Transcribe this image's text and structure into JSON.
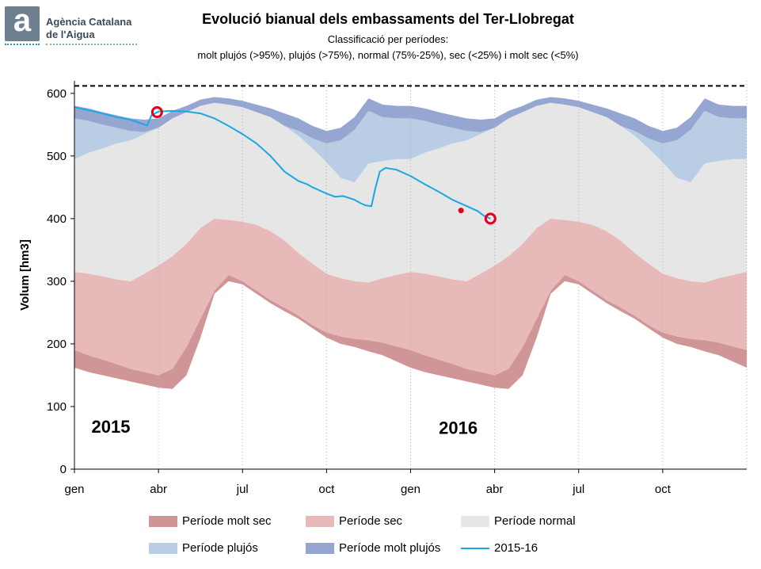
{
  "header": {
    "logo_letter": "a",
    "org_line1": "Agència Catalana",
    "org_line2": "de l'Aigua",
    "title": "Evolució bianual dels embassaments del Ter-Llobregat",
    "subtitle1": "Classificació per períodes:",
    "subtitle2": "molt plujós (>95%), plujós (>75%), normal (75%-25%), sec (<25%) i molt sec (<5%)"
  },
  "chart_data": {
    "type": "area",
    "ylabel": "Volum [hm3]",
    "ylim": [
      0,
      620
    ],
    "yticks": [
      0,
      100,
      200,
      300,
      400,
      500,
      600
    ],
    "xlim": [
      0,
      24
    ],
    "xtick_positions": [
      0,
      3,
      6,
      9,
      12,
      15,
      18,
      21
    ],
    "xtick_labels": [
      "gen",
      "abr",
      "jul",
      "oct",
      "gen",
      "abr",
      "jul",
      "oct"
    ],
    "capacity_line": 612,
    "year_labels": [
      {
        "text": "2015",
        "x": 1.3,
        "y": 58
      },
      {
        "text": "2016",
        "x": 13.7,
        "y": 56
      }
    ],
    "grid": true,
    "legend_position": "bottom",
    "bands_x": [
      0,
      0.5,
      1,
      1.5,
      2,
      2.5,
      3,
      3.5,
      4,
      4.5,
      5,
      5.5,
      6,
      6.5,
      7,
      7.5,
      8,
      8.5,
      9,
      9.5,
      10,
      10.5,
      11,
      11.5,
      12
    ],
    "bands_yearly": {
      "p5": [
        162,
        155,
        150,
        145,
        140,
        135,
        130,
        128,
        150,
        210,
        280,
        300,
        295,
        280,
        265,
        252,
        240,
        225,
        210,
        200,
        195,
        188,
        182,
        172,
        162
      ],
      "p25": [
        190,
        182,
        175,
        168,
        160,
        155,
        150,
        160,
        195,
        240,
        285,
        310,
        300,
        285,
        270,
        258,
        245,
        230,
        218,
        212,
        208,
        206,
        202,
        196,
        190
      ],
      "p75": [
        315,
        312,
        308,
        303,
        300,
        312,
        325,
        340,
        360,
        385,
        400,
        398,
        395,
        390,
        380,
        365,
        345,
        328,
        312,
        305,
        300,
        298,
        305,
        310,
        315
      ],
      "p95": [
        495,
        505,
        512,
        520,
        525,
        535,
        545,
        560,
        570,
        580,
        585,
        582,
        578,
        570,
        562,
        548,
        532,
        512,
        490,
        465,
        458,
        488,
        492,
        495,
        495
      ],
      "max": [
        580,
        576,
        570,
        565,
        560,
        558,
        560,
        572,
        580,
        590,
        594,
        592,
        588,
        582,
        576,
        568,
        560,
        548,
        540,
        545,
        562,
        592,
        582,
        580,
        580
      ]
    },
    "bands_legend": [
      {
        "name": "Període molt sec",
        "color": "#d09596"
      },
      {
        "name": "Període sec",
        "color": "#e8b9b9"
      },
      {
        "name": "Període normal",
        "color": "#e6e6e6"
      },
      {
        "name": "Període plujós",
        "color": "#b9cde5"
      },
      {
        "name": "Període molt plujós",
        "color": "#95a6d1"
      }
    ],
    "series": [
      {
        "name": "2015-16",
        "color": "#1aa7e2",
        "x": [
          0,
          0.5,
          1,
          1.5,
          2,
          2.5,
          2.6,
          2.75,
          3,
          3.5,
          4,
          4.5,
          5,
          5.5,
          6,
          6.5,
          7,
          7.5,
          8,
          8.3,
          8.5,
          8.7,
          9,
          9.3,
          9.6,
          10,
          10.2,
          10.4,
          10.6,
          10.75,
          10.9,
          11.1,
          11.5,
          12,
          12.5,
          13,
          13.5,
          14,
          14.4,
          14.6,
          14.85
        ],
        "values": [
          578,
          573,
          568,
          562,
          558,
          550,
          549,
          565,
          571,
          572,
          571,
          568,
          560,
          548,
          535,
          520,
          500,
          475,
          460,
          455,
          450,
          446,
          440,
          435,
          436,
          430,
          425,
          421,
          420,
          450,
          475,
          481,
          478,
          468,
          455,
          443,
          430,
          420,
          412,
          405,
          400
        ]
      }
    ],
    "markers": [
      {
        "type": "ring",
        "x": 2.95,
        "y": 570,
        "color": "#e3001b"
      },
      {
        "type": "dot",
        "x": 13.8,
        "y": 413,
        "color": "#e3001b"
      },
      {
        "type": "ring",
        "x": 14.85,
        "y": 400,
        "color": "#e3001b"
      }
    ]
  },
  "legend": {
    "molt_sec": "Període molt sec",
    "sec": "Període sec",
    "normal": "Període normal",
    "plujos": "Període plujós",
    "molt_plujos": "Període molt plujós",
    "series": "2015-16"
  }
}
